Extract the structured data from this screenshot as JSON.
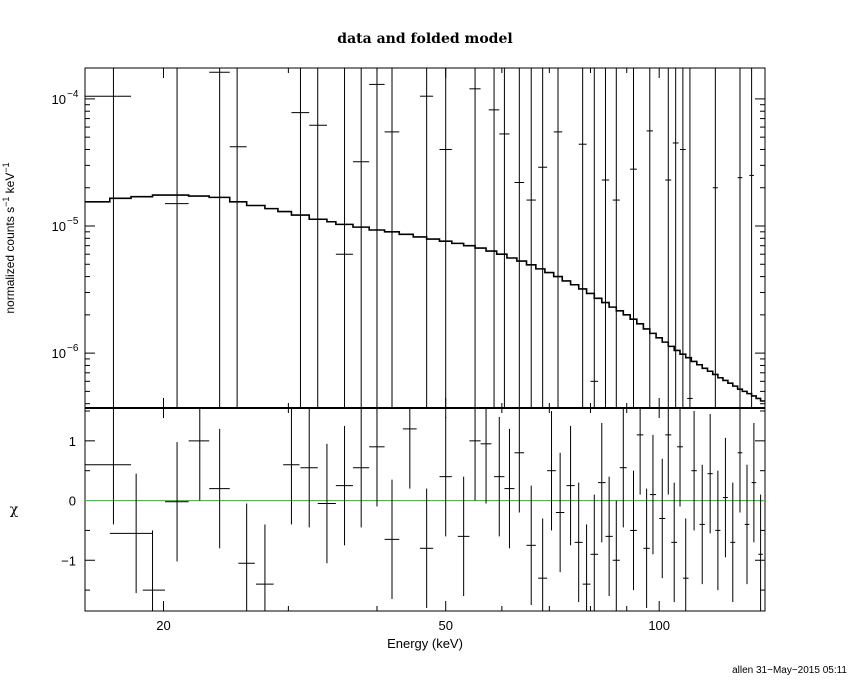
{
  "chart_data": [
    {
      "type": "scatter",
      "title": "data and folded model",
      "ylabel_prefix": "normalized counts s",
      "ylabel_sup1": "−1",
      "ylabel_mid": " keV",
      "ylabel_sup2": "−1",
      "xscale": "log",
      "yscale": "log",
      "xlim": [
        15.5,
        141
      ],
      "ylim": [
        3.7e-07,
        0.000175
      ],
      "yticks": [
        {
          "value": 1e-06,
          "base": "10",
          "exp": "−6"
        },
        {
          "value": 1e-05,
          "base": "10",
          "exp": "−5"
        },
        {
          "value": 0.0001,
          "base": "10",
          "exp": "−4"
        }
      ],
      "data_color": "#000000",
      "model_color": "#000000",
      "series": [
        {
          "kind": "data-with-errors",
          "points": [
            {
              "x": 17.0,
              "xlo": 15.5,
              "xhi": 18.0,
              "y": 0.000105,
              "ylo": 3.7e-07,
              "yhi": 0.000175
            },
            {
              "x": 20.9,
              "xlo": 20.1,
              "xhi": 21.7,
              "y": 1.5e-05,
              "ylo": 3.7e-07,
              "yhi": 0.000175
            },
            {
              "x": 24.0,
              "xlo": 23.2,
              "xhi": 24.8,
              "y": 0.000162,
              "ylo": 3.7e-07,
              "yhi": 0.000175
            },
            {
              "x": 25.4,
              "xlo": 24.8,
              "xhi": 26.2,
              "y": 4.2e-05,
              "ylo": 3.7e-07,
              "yhi": 0.000175
            },
            {
              "x": 31.2,
              "xlo": 30.3,
              "xhi": 32.1,
              "y": 7.8e-05,
              "ylo": 3.7e-07,
              "yhi": 0.000175
            },
            {
              "x": 33.0,
              "xlo": 32.1,
              "xhi": 34.0,
              "y": 6.2e-05,
              "ylo": 3.7e-07,
              "yhi": 0.000175
            },
            {
              "x": 36.0,
              "xlo": 35.0,
              "xhi": 37.0,
              "y": 6e-06,
              "ylo": 3.7e-07,
              "yhi": 0.000175
            },
            {
              "x": 38.0,
              "xlo": 37.0,
              "xhi": 39.0,
              "y": 3.2e-05,
              "ylo": 3.7e-07,
              "yhi": 0.000175
            },
            {
              "x": 40.0,
              "xlo": 39.0,
              "xhi": 41.0,
              "y": 0.00013,
              "ylo": 3.7e-07,
              "yhi": 0.000175
            },
            {
              "x": 42.0,
              "xlo": 41.0,
              "xhi": 43.0,
              "y": 5.5e-05,
              "ylo": 3.7e-07,
              "yhi": 0.000175
            },
            {
              "x": 47.0,
              "xlo": 46.0,
              "xhi": 48.0,
              "y": 0.000105,
              "ylo": 3.7e-07,
              "yhi": 0.000175
            },
            {
              "x": 50.0,
              "xlo": 49.0,
              "xhi": 51.0,
              "y": 4e-05,
              "ylo": 3.7e-07,
              "yhi": 0.000175
            },
            {
              "x": 55.0,
              "xlo": 54.0,
              "xhi": 56.0,
              "y": 0.00012,
              "ylo": 3.7e-07,
              "yhi": 0.000175
            },
            {
              "x": 58.5,
              "xlo": 57.5,
              "xhi": 59.5,
              "y": 8.2e-05,
              "ylo": 3.7e-07,
              "yhi": 0.000175
            },
            {
              "x": 60.5,
              "xlo": 59.5,
              "xhi": 61.5,
              "y": 5.3e-05,
              "ylo": 3.7e-07,
              "yhi": 0.000175
            },
            {
              "x": 63.5,
              "xlo": 62.5,
              "xhi": 64.5,
              "y": 2.2e-05,
              "ylo": 3.7e-07,
              "yhi": 0.000175
            },
            {
              "x": 66.0,
              "xlo": 65.0,
              "xhi": 67.0,
              "y": 1.6e-05,
              "ylo": 3.7e-07,
              "yhi": 0.000175
            },
            {
              "x": 68.5,
              "xlo": 67.5,
              "xhi": 69.5,
              "y": 2.9e-05,
              "ylo": 3.7e-07,
              "yhi": 0.000175
            },
            {
              "x": 72.0,
              "xlo": 71.0,
              "xhi": 73.0,
              "y": 5.5e-05,
              "ylo": 3.7e-07,
              "yhi": 0.000175
            },
            {
              "x": 78.0,
              "xlo": 77.0,
              "xhi": 79.0,
              "y": 4.4e-05,
              "ylo": 3.7e-07,
              "yhi": 0.000175
            },
            {
              "x": 81.0,
              "xlo": 80.0,
              "xhi": 82.0,
              "y": 6e-07,
              "ylo": 3.7e-07,
              "yhi": 0.000175
            },
            {
              "x": 84.0,
              "xlo": 83.0,
              "xhi": 85.0,
              "y": 2.3e-05,
              "ylo": 3.7e-07,
              "yhi": 0.000175
            },
            {
              "x": 87.0,
              "xlo": 86.0,
              "xhi": 88.0,
              "y": 1.6e-05,
              "ylo": 3.7e-07,
              "yhi": 0.000175
            },
            {
              "x": 92.0,
              "xlo": 91.0,
              "xhi": 93.0,
              "y": 2.8e-05,
              "ylo": 3.7e-07,
              "yhi": 0.000175
            },
            {
              "x": 97.0,
              "xlo": 96.0,
              "xhi": 98.0,
              "y": 5.6e-05,
              "ylo": 3.7e-07,
              "yhi": 0.000175
            },
            {
              "x": 103.0,
              "xlo": 102.0,
              "xhi": 104.0,
              "y": 2.3e-05,
              "ylo": 3.7e-07,
              "yhi": 0.000175
            },
            {
              "x": 105.5,
              "xlo": 104.5,
              "xhi": 106.5,
              "y": 4.5e-05,
              "ylo": 3.7e-07,
              "yhi": 0.000175
            },
            {
              "x": 108.0,
              "xlo": 107.0,
              "xhi": 109.0,
              "y": 4e-05,
              "ylo": 3.7e-07,
              "yhi": 0.000175
            },
            {
              "x": 110.5,
              "xlo": 109.5,
              "xhi": 111.5,
              "y": 4.4e-07,
              "ylo": 3.7e-07,
              "yhi": 0.000175
            },
            {
              "x": 120.0,
              "xlo": 119.0,
              "xhi": 121.0,
              "y": 2e-05,
              "ylo": 3.7e-07,
              "yhi": 0.000175
            },
            {
              "x": 130.0,
              "xlo": 129.0,
              "xhi": 131.0,
              "y": 2.4e-05,
              "ylo": 3.7e-07,
              "yhi": 0.000175
            },
            {
              "x": 135.0,
              "xlo": 134.0,
              "xhi": 136.0,
              "y": 2.5e-05,
              "ylo": 3.7e-07,
              "yhi": 0.000175
            }
          ]
        },
        {
          "kind": "model-step",
          "edges": [
            15.5,
            16.8,
            18.0,
            19.3,
            20.1,
            21.7,
            23.2,
            24.8,
            26.2,
            27.8,
            29.0,
            30.3,
            32.1,
            34.0,
            35.0,
            37.0,
            39.0,
            41.0,
            43.0,
            45.0,
            47.0,
            49.0,
            51.0,
            53.0,
            55.0,
            57.0,
            59.0,
            61.0,
            63.0,
            65.0,
            67.0,
            69.0,
            71.0,
            73.0,
            75.0,
            77.0,
            79.0,
            81.0,
            83.0,
            85.0,
            87.0,
            89.0,
            91.0,
            93.0,
            95.0,
            97.0,
            99.0,
            101.0,
            103.0,
            105.0,
            107.0,
            109.0,
            111.0,
            113.0,
            115.0,
            117.0,
            119.0,
            121.0,
            123.0,
            125.0,
            127.0,
            129.0,
            131.0,
            133.0,
            135.0,
            137.0,
            139.0,
            141.0
          ],
          "values": [
            1.55e-05,
            1.65e-05,
            1.7e-05,
            1.75e-05,
            1.75e-05,
            1.72e-05,
            1.68e-05,
            1.55e-05,
            1.45e-05,
            1.37e-05,
            1.3e-05,
            1.22e-05,
            1.13e-05,
            1.08e-05,
            1.03e-05,
            9.8e-06,
            9.3e-06,
            9e-06,
            8.6e-06,
            8.2e-06,
            7.9e-06,
            7.6e-06,
            7.3e-06,
            7e-06,
            6.7e-06,
            6.35e-06,
            6e-06,
            5.6e-06,
            5.3e-06,
            4.95e-06,
            4.6e-06,
            4.3e-06,
            4e-06,
            3.7e-06,
            3.45e-06,
            3.2e-06,
            2.95e-06,
            2.7e-06,
            2.5e-06,
            2.3e-06,
            2.15e-06,
            2e-06,
            1.85e-06,
            1.7e-06,
            1.55e-06,
            1.43e-06,
            1.32e-06,
            1.22e-06,
            1.13e-06,
            1.05e-06,
            9.8e-07,
            9.2e-07,
            8.6e-07,
            8.1e-07,
            7.6e-07,
            7.2e-07,
            6.8e-07,
            6.4e-07,
            6.1e-07,
            5.8e-07,
            5.5e-07,
            5.2e-07,
            5e-07,
            4.8e-07,
            4.6e-07,
            4.4e-07,
            4.2e-07
          ]
        }
      ]
    },
    {
      "type": "scatter",
      "ylabel": "χ",
      "xlabel": "Energy (keV)",
      "xscale": "log",
      "xlim": [
        15.5,
        141
      ],
      "ylim": [
        -1.85,
        1.55
      ],
      "xticks": [
        20,
        50,
        100
      ],
      "xticklabels": [
        "20",
        "50",
        "100"
      ],
      "yticks": [
        -1,
        0,
        1
      ],
      "yticklabels": [
        "−1",
        "0",
        "1"
      ],
      "zero_line_color": "#33cc33",
      "data_color": "#000000",
      "points": [
        {
          "x": 17.0,
          "xlo": 15.5,
          "xhi": 18.0,
          "y": 0.6,
          "ylo": -0.4,
          "yhi": 1.55
        },
        {
          "x": 18.3,
          "xlo": 16.8,
          "xhi": 19.3,
          "y": -0.55,
          "ylo": -1.55,
          "yhi": 0.45
        },
        {
          "x": 19.3,
          "xlo": 18.7,
          "xhi": 20.1,
          "y": -1.5,
          "ylo": -1.85,
          "yhi": -0.5
        },
        {
          "x": 20.9,
          "xlo": 20.1,
          "xhi": 21.7,
          "y": -0.02,
          "ylo": -1.02,
          "yhi": 0.98
        },
        {
          "x": 22.5,
          "xlo": 21.7,
          "xhi": 23.2,
          "y": 1.0,
          "ylo": 0.0,
          "yhi": 1.55
        },
        {
          "x": 24.0,
          "xlo": 23.2,
          "xhi": 24.8,
          "y": 0.2,
          "ylo": -0.8,
          "yhi": 1.2
        },
        {
          "x": 26.2,
          "xlo": 25.5,
          "xhi": 26.9,
          "y": -1.05,
          "ylo": -1.85,
          "yhi": -0.05
        },
        {
          "x": 27.8,
          "xlo": 27.0,
          "xhi": 28.6,
          "y": -1.4,
          "ylo": -1.85,
          "yhi": -0.4
        },
        {
          "x": 30.3,
          "xlo": 29.5,
          "xhi": 31.1,
          "y": 0.6,
          "ylo": -0.4,
          "yhi": 1.55
        },
        {
          "x": 32.1,
          "xlo": 31.2,
          "xhi": 33.0,
          "y": 0.55,
          "ylo": -0.45,
          "yhi": 1.55
        },
        {
          "x": 34.0,
          "xlo": 33.0,
          "xhi": 35.0,
          "y": -0.05,
          "ylo": -1.05,
          "yhi": 0.95
        },
        {
          "x": 36.0,
          "xlo": 35.0,
          "xhi": 37.0,
          "y": 0.25,
          "ylo": -0.75,
          "yhi": 1.25
        },
        {
          "x": 38.0,
          "xlo": 37.0,
          "xhi": 39.0,
          "y": 0.55,
          "ylo": -0.45,
          "yhi": 1.55
        },
        {
          "x": 40.0,
          "xlo": 39.0,
          "xhi": 41.0,
          "y": 0.9,
          "ylo": -0.1,
          "yhi": 1.55
        },
        {
          "x": 42.0,
          "xlo": 41.0,
          "xhi": 43.0,
          "y": -0.65,
          "ylo": -1.65,
          "yhi": 0.35
        },
        {
          "x": 44.5,
          "xlo": 43.5,
          "xhi": 45.5,
          "y": 1.2,
          "ylo": 0.2,
          "yhi": 1.55
        },
        {
          "x": 47.0,
          "xlo": 46.0,
          "xhi": 48.0,
          "y": -0.8,
          "ylo": -1.8,
          "yhi": 0.2
        },
        {
          "x": 50.0,
          "xlo": 49.0,
          "xhi": 51.0,
          "y": 0.4,
          "ylo": -0.6,
          "yhi": 1.4
        },
        {
          "x": 53.0,
          "xlo": 52.0,
          "xhi": 54.0,
          "y": -0.6,
          "ylo": -1.6,
          "yhi": 0.4
        },
        {
          "x": 55.0,
          "xlo": 54.0,
          "xhi": 56.0,
          "y": 1.0,
          "ylo": 0.0,
          "yhi": 1.55
        },
        {
          "x": 57.0,
          "xlo": 56.0,
          "xhi": 58.0,
          "y": 0.95,
          "ylo": -0.05,
          "yhi": 1.55
        },
        {
          "x": 59.5,
          "xlo": 58.5,
          "xhi": 60.5,
          "y": 0.4,
          "ylo": -0.6,
          "yhi": 1.4
        },
        {
          "x": 61.5,
          "xlo": 60.5,
          "xhi": 62.5,
          "y": 0.2,
          "ylo": -0.8,
          "yhi": 1.2
        },
        {
          "x": 63.5,
          "xlo": 62.5,
          "xhi": 64.5,
          "y": 0.8,
          "ylo": -0.2,
          "yhi": 1.55
        },
        {
          "x": 66.0,
          "xlo": 65.0,
          "xhi": 67.0,
          "y": -0.75,
          "ylo": -1.75,
          "yhi": 0.25
        },
        {
          "x": 68.5,
          "xlo": 67.5,
          "xhi": 69.5,
          "y": -1.3,
          "ylo": -1.85,
          "yhi": -0.3
        },
        {
          "x": 70.5,
          "xlo": 69.5,
          "xhi": 71.5,
          "y": 0.5,
          "ylo": -0.5,
          "yhi": 1.5
        },
        {
          "x": 72.5,
          "xlo": 71.5,
          "xhi": 73.5,
          "y": -0.2,
          "ylo": -1.2,
          "yhi": 0.8
        },
        {
          "x": 75.0,
          "xlo": 74.0,
          "xhi": 76.0,
          "y": 0.25,
          "ylo": -0.75,
          "yhi": 1.25
        },
        {
          "x": 77.0,
          "xlo": 76.0,
          "xhi": 78.0,
          "y": -0.7,
          "ylo": -1.7,
          "yhi": 0.3
        },
        {
          "x": 79.0,
          "xlo": 78.0,
          "xhi": 80.0,
          "y": -1.4,
          "ylo": -1.85,
          "yhi": -0.4
        },
        {
          "x": 81.0,
          "xlo": 80.0,
          "xhi": 82.0,
          "y": -0.9,
          "ylo": -1.85,
          "yhi": 0.1
        },
        {
          "x": 83.0,
          "xlo": 82.0,
          "xhi": 84.0,
          "y": 0.3,
          "ylo": -0.7,
          "yhi": 1.3
        },
        {
          "x": 85.0,
          "xlo": 84.0,
          "xhi": 86.0,
          "y": -0.6,
          "ylo": -1.6,
          "yhi": 0.4
        },
        {
          "x": 87.0,
          "xlo": 86.0,
          "xhi": 88.0,
          "y": -1.0,
          "ylo": -1.85,
          "yhi": 0.0
        },
        {
          "x": 89.0,
          "xlo": 88.0,
          "xhi": 90.0,
          "y": 0.55,
          "ylo": -0.45,
          "yhi": 1.55
        },
        {
          "x": 92.0,
          "xlo": 91.0,
          "xhi": 93.0,
          "y": -0.5,
          "ylo": -1.5,
          "yhi": 0.5
        },
        {
          "x": 94.0,
          "xlo": 93.0,
          "xhi": 95.0,
          "y": 1.1,
          "ylo": 0.1,
          "yhi": 1.55
        },
        {
          "x": 96.0,
          "xlo": 95.0,
          "xhi": 97.0,
          "y": -0.8,
          "ylo": -1.8,
          "yhi": 0.2
        },
        {
          "x": 98.0,
          "xlo": 97.0,
          "xhi": 99.0,
          "y": 0.1,
          "ylo": -0.9,
          "yhi": 1.1
        },
        {
          "x": 101.0,
          "xlo": 100.0,
          "xhi": 102.0,
          "y": -0.3,
          "ylo": -1.3,
          "yhi": 0.7
        },
        {
          "x": 103.0,
          "xlo": 102.0,
          "xhi": 104.0,
          "y": 1.1,
          "ylo": 0.1,
          "yhi": 1.55
        },
        {
          "x": 105.0,
          "xlo": 104.0,
          "xhi": 106.0,
          "y": -0.7,
          "ylo": -1.7,
          "yhi": 0.3
        },
        {
          "x": 107.0,
          "xlo": 106.0,
          "xhi": 108.0,
          "y": 0.9,
          "ylo": -0.1,
          "yhi": 1.55
        },
        {
          "x": 109.0,
          "xlo": 108.0,
          "xhi": 110.0,
          "y": -1.3,
          "ylo": -1.85,
          "yhi": -0.3
        },
        {
          "x": 112.0,
          "xlo": 111.0,
          "xhi": 113.0,
          "y": 0.5,
          "ylo": -0.5,
          "yhi": 1.5
        },
        {
          "x": 115.0,
          "xlo": 114.0,
          "xhi": 116.0,
          "y": -0.4,
          "ylo": -1.4,
          "yhi": 0.6
        },
        {
          "x": 118.0,
          "xlo": 117.0,
          "xhi": 119.0,
          "y": 0.45,
          "ylo": -0.55,
          "yhi": 1.45
        },
        {
          "x": 121.0,
          "xlo": 120.0,
          "xhi": 122.0,
          "y": -0.5,
          "ylo": -1.5,
          "yhi": 0.5
        },
        {
          "x": 124.0,
          "xlo": 123.0,
          "xhi": 125.0,
          "y": 0.05,
          "ylo": -0.95,
          "yhi": 1.05
        },
        {
          "x": 127.0,
          "xlo": 126.0,
          "xhi": 128.0,
          "y": -0.7,
          "ylo": -1.7,
          "yhi": 0.3
        },
        {
          "x": 130.0,
          "xlo": 129.0,
          "xhi": 131.0,
          "y": 0.8,
          "ylo": -0.2,
          "yhi": 1.55
        },
        {
          "x": 133.0,
          "xlo": 132.0,
          "xhi": 134.0,
          "y": -0.4,
          "ylo": -1.4,
          "yhi": 0.6
        },
        {
          "x": 136.0,
          "xlo": 135.0,
          "xhi": 137.0,
          "y": 0.3,
          "ylo": -0.7,
          "yhi": 1.3
        },
        {
          "x": 139.0,
          "xlo": 138.0,
          "xhi": 140.0,
          "y": -0.9,
          "ylo": -1.85,
          "yhi": 0.1
        }
      ]
    }
  ],
  "footer": {
    "stamp": "allen 31−May−2015 05:11"
  }
}
